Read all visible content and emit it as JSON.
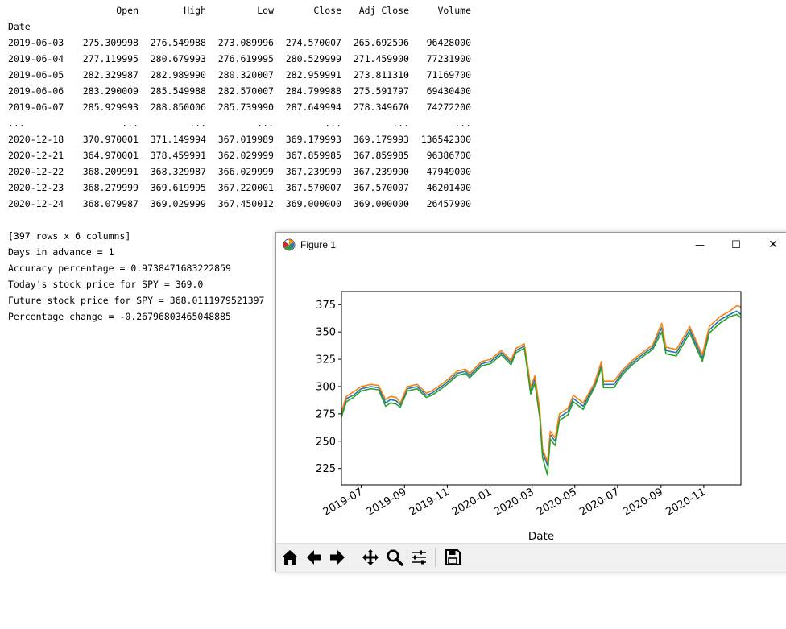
{
  "console": {
    "headers": [
      "Open",
      "High",
      "Low",
      "Close",
      "Adj Close",
      "Volume"
    ],
    "index_name": "Date",
    "rows": [
      [
        "2019-06-03",
        "275.309998",
        "276.549988",
        "273.089996",
        "274.570007",
        "265.692596",
        "96428000"
      ],
      [
        "2019-06-04",
        "277.119995",
        "280.679993",
        "276.619995",
        "280.529999",
        "271.459900",
        "77231900"
      ],
      [
        "2019-06-05",
        "282.329987",
        "282.989990",
        "280.320007",
        "282.959991",
        "273.811310",
        "71169700"
      ],
      [
        "2019-06-06",
        "283.290009",
        "285.549988",
        "282.570007",
        "284.799988",
        "275.591797",
        "69430400"
      ],
      [
        "2019-06-07",
        "285.929993",
        "288.850006",
        "285.739990",
        "287.649994",
        "278.349670",
        "74272200"
      ],
      [
        "...",
        "...",
        "...",
        "...",
        "...",
        "...",
        "..."
      ],
      [
        "2020-12-18",
        "370.970001",
        "371.149994",
        "367.019989",
        "369.179993",
        "369.179993",
        "136542300"
      ],
      [
        "2020-12-21",
        "364.970001",
        "378.459991",
        "362.029999",
        "367.859985",
        "367.859985",
        "96386700"
      ],
      [
        "2020-12-22",
        "368.209991",
        "368.329987",
        "366.029999",
        "367.239990",
        "367.239990",
        "47949000"
      ],
      [
        "2020-12-23",
        "368.279999",
        "369.619995",
        "367.220001",
        "367.570007",
        "367.570007",
        "46201400"
      ],
      [
        "2020-12-24",
        "368.079987",
        "369.029999",
        "367.450012",
        "369.000000",
        "369.000000",
        "26457900"
      ]
    ],
    "summary": "[397 rows x 6 columns]",
    "output_lines": [
      "Days in advance = 1",
      "Accuracy percentage = 0.9738471683222859",
      "Today's stock price for SPY = 369.0",
      "Future stock price for SPY = 368.0111979521397",
      "Percentage change = -0.26796803465048885"
    ]
  },
  "window": {
    "title": "Figure 1",
    "controls": {
      "minimize": "—",
      "maximize": "☐",
      "close": "✕"
    }
  },
  "toolbar": [
    "home-icon",
    "back-icon",
    "forward-icon",
    "pan-icon",
    "zoom-icon",
    "configure-subplots-icon",
    "save-icon"
  ],
  "chart_data": {
    "type": "line",
    "xlabel": "Date",
    "ylabel": "",
    "title": "",
    "ylim": [
      210,
      387
    ],
    "xlim": [
      "2019-06-03",
      "2020-12-24"
    ],
    "x_ticks": [
      "2019-07",
      "2019-09",
      "2019-11",
      "2020-01",
      "2020-03",
      "2020-05",
      "2020-07",
      "2020-09",
      "2020-11"
    ],
    "y_ticks": [
      225,
      250,
      275,
      300,
      325,
      350,
      375
    ],
    "grid": false,
    "legend": "none",
    "x": [
      "2019-06-03",
      "2019-06-10",
      "2019-06-20",
      "2019-07-01",
      "2019-07-15",
      "2019-07-26",
      "2019-08-05",
      "2019-08-12",
      "2019-08-20",
      "2019-08-26",
      "2019-09-05",
      "2019-09-19",
      "2019-10-02",
      "2019-10-10",
      "2019-10-28",
      "2019-11-15",
      "2019-11-27",
      "2019-12-03",
      "2019-12-20",
      "2020-01-02",
      "2020-01-17",
      "2020-01-31",
      "2020-02-07",
      "2020-02-19",
      "2020-02-25",
      "2020-02-28",
      "2020-03-05",
      "2020-03-12",
      "2020-03-16",
      "2020-03-23",
      "2020-03-27",
      "2020-04-03",
      "2020-04-09",
      "2020-04-21",
      "2020-04-29",
      "2020-05-13",
      "2020-05-29",
      "2020-06-08",
      "2020-06-11",
      "2020-06-26",
      "2020-07-08",
      "2020-07-22",
      "2020-08-03",
      "2020-08-20",
      "2020-09-02",
      "2020-09-08",
      "2020-09-23",
      "2020-10-12",
      "2020-10-30",
      "2020-11-09",
      "2020-11-24",
      "2020-12-08",
      "2020-12-18",
      "2020-12-24"
    ],
    "series": [
      {
        "color": "#1f77b4",
        "values": [
          274,
          289,
          292,
          298,
          300,
          299,
          285,
          288,
          287,
          283,
          298,
          300,
          292,
          294,
          302,
          312,
          314,
          310,
          321,
          323,
          331,
          322,
          333,
          337,
          311,
          296,
          307,
          275,
          240,
          228,
          256,
          250,
          272,
          277,
          289,
          282,
          301,
          320,
          302,
          302,
          313,
          322,
          328,
          336,
          354,
          333,
          331,
          352,
          326,
          352,
          361,
          366,
          369,
          366
        ]
      },
      {
        "color": "#ff7f0e",
        "values": [
          277,
          291,
          295,
          300,
          302,
          301,
          288,
          291,
          290,
          285,
          300,
          302,
          294,
          296,
          304,
          314,
          316,
          312,
          323,
          325,
          333,
          324,
          335,
          339,
          314,
          299,
          310,
          278,
          243,
          231,
          259,
          253,
          275,
          280,
          292,
          285,
          303,
          323,
          305,
          305,
          315,
          324,
          330,
          338,
          358,
          336,
          334,
          355,
          329,
          355,
          364,
          369,
          374,
          373
        ]
      },
      {
        "color": "#2ca02c",
        "values": [
          272,
          286,
          290,
          296,
          298,
          297,
          282,
          285,
          284,
          281,
          296,
          298,
          290,
          292,
          300,
          310,
          312,
          308,
          319,
          321,
          329,
          320,
          331,
          335,
          308,
          293,
          303,
          271,
          235,
          219,
          252,
          246,
          269,
          274,
          286,
          279,
          299,
          317,
          299,
          299,
          311,
          320,
          326,
          334,
          350,
          330,
          328,
          349,
          323,
          349,
          358,
          364,
          366,
          363
        ]
      }
    ]
  }
}
